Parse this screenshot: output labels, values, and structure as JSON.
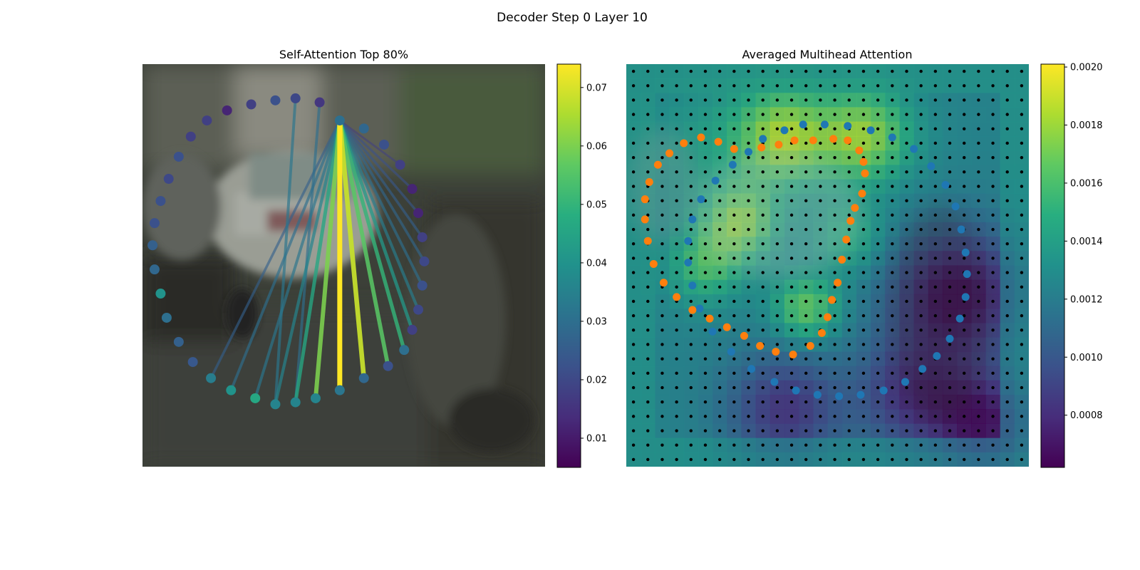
{
  "figure": {
    "suptitle": "Decoder Step 0 Layer 10"
  },
  "chart_data": [
    {
      "type": "scatter",
      "title": "Self-Attention Top 80%",
      "xlabel": "",
      "ylabel": "",
      "grid": false,
      "background": "blurred street photo with parked cars",
      "colormap": "viridis",
      "points": [
        {
          "x": 49,
          "y": 14,
          "v": 0.03
        },
        {
          "x": 55,
          "y": 16,
          "v": 0.028
        },
        {
          "x": 60,
          "y": 20,
          "v": 0.022
        },
        {
          "x": 64,
          "y": 25,
          "v": 0.018
        },
        {
          "x": 67,
          "y": 31,
          "v": 0.012
        },
        {
          "x": 68.5,
          "y": 37,
          "v": 0.012
        },
        {
          "x": 69.5,
          "y": 43,
          "v": 0.018
        },
        {
          "x": 70,
          "y": 49,
          "v": 0.02
        },
        {
          "x": 69.5,
          "y": 55,
          "v": 0.022
        },
        {
          "x": 68.5,
          "y": 61,
          "v": 0.02
        },
        {
          "x": 67,
          "y": 66,
          "v": 0.018
        },
        {
          "x": 65,
          "y": 71,
          "v": 0.03
        },
        {
          "x": 61,
          "y": 75,
          "v": 0.022
        },
        {
          "x": 55,
          "y": 78,
          "v": 0.028
        },
        {
          "x": 49,
          "y": 81,
          "v": 0.032
        },
        {
          "x": 43,
          "y": 83,
          "v": 0.036
        },
        {
          "x": 38,
          "y": 84,
          "v": 0.036
        },
        {
          "x": 33,
          "y": 84.5,
          "v": 0.036
        },
        {
          "x": 28,
          "y": 83,
          "v": 0.046
        },
        {
          "x": 22,
          "y": 81,
          "v": 0.04
        },
        {
          "x": 17,
          "y": 78,
          "v": 0.034
        },
        {
          "x": 12.5,
          "y": 74,
          "v": 0.024
        },
        {
          "x": 9,
          "y": 69,
          "v": 0.026
        },
        {
          "x": 6,
          "y": 63,
          "v": 0.03
        },
        {
          "x": 4.5,
          "y": 57,
          "v": 0.04
        },
        {
          "x": 3,
          "y": 51,
          "v": 0.028
        },
        {
          "x": 2.5,
          "y": 45,
          "v": 0.026
        },
        {
          "x": 3,
          "y": 39.5,
          "v": 0.022
        },
        {
          "x": 4.5,
          "y": 34,
          "v": 0.022
        },
        {
          "x": 6.5,
          "y": 28.5,
          "v": 0.02
        },
        {
          "x": 9,
          "y": 23,
          "v": 0.022
        },
        {
          "x": 12,
          "y": 18,
          "v": 0.018
        },
        {
          "x": 16,
          "y": 14,
          "v": 0.018
        },
        {
          "x": 21,
          "y": 11.5,
          "v": 0.012
        },
        {
          "x": 27,
          "y": 10,
          "v": 0.018
        },
        {
          "x": 33,
          "y": 9,
          "v": 0.022
        },
        {
          "x": 38,
          "y": 8.5,
          "v": 0.02
        },
        {
          "x": 44,
          "y": 9.5,
          "v": 0.016
        }
      ],
      "lines": [
        {
          "from": 0,
          "to": 14,
          "w": 0.074
        },
        {
          "from": 0,
          "to": 13,
          "w": 0.068
        },
        {
          "from": 0,
          "to": 15,
          "w": 0.06
        },
        {
          "from": 0,
          "to": 12,
          "w": 0.056
        },
        {
          "from": 0,
          "to": 11,
          "w": 0.05
        },
        {
          "from": 0,
          "to": 16,
          "w": 0.046
        },
        {
          "from": 0,
          "to": 10,
          "w": 0.042
        },
        {
          "from": 0,
          "to": 17,
          "w": 0.036
        },
        {
          "from": 0,
          "to": 9,
          "w": 0.034
        },
        {
          "from": 0,
          "to": 18,
          "w": 0.032
        },
        {
          "from": 0,
          "to": 8,
          "w": 0.03
        },
        {
          "from": 0,
          "to": 19,
          "w": 0.03
        },
        {
          "from": 0,
          "to": 7,
          "w": 0.028
        },
        {
          "from": 0,
          "to": 20,
          "w": 0.026
        },
        {
          "from": 0,
          "to": 6,
          "w": 0.026
        },
        {
          "from": 0,
          "to": 5,
          "w": 0.024
        },
        {
          "from": 0,
          "to": 4,
          "w": 0.022
        },
        {
          "from": 17,
          "to": 36,
          "w": 0.032
        },
        {
          "from": 16,
          "to": 37,
          "w": 0.03
        },
        {
          "from": 0,
          "to": 3,
          "w": 0.018
        }
      ],
      "colorbar": {
        "vmin": 0.005,
        "vmax": 0.074,
        "ticks": [
          0.01,
          0.02,
          0.03,
          0.04,
          0.05,
          0.06,
          0.07
        ],
        "tick_labels": [
          "0.01",
          "0.02",
          "0.03",
          "0.04",
          "0.05",
          "0.06",
          "0.07"
        ]
      }
    },
    {
      "type": "heatmap",
      "title": "Averaged Multihead Attention",
      "xlabel": "",
      "ylabel": "",
      "grid_cells": 28,
      "colormap": "viridis",
      "value_range": [
        0.00062,
        0.00201
      ],
      "blobs": [
        {
          "cx": 6,
          "cy": 6,
          "r": 5,
          "v": 0.0014
        },
        {
          "cx": 11,
          "cy": 5,
          "r": 3.2,
          "v": 0.0018
        },
        {
          "cx": 16.5,
          "cy": 5,
          "r": 3.2,
          "v": 0.0018
        },
        {
          "cx": 8,
          "cy": 11,
          "r": 2.5,
          "v": 0.0017
        },
        {
          "cx": 5.5,
          "cy": 14,
          "r": 2.5,
          "v": 0.0016
        },
        {
          "cx": 12.5,
          "cy": 17,
          "r": 2.2,
          "v": 0.0017
        },
        {
          "cx": 15.5,
          "cy": 12,
          "r": 2.5,
          "v": 0.0015
        },
        {
          "cx": 23,
          "cy": 16,
          "r": 4.5,
          "v": 0.0006
        },
        {
          "cx": 25,
          "cy": 25,
          "r": 3.5,
          "v": 0.0007
        },
        {
          "cx": 20,
          "cy": 23,
          "r": 4,
          "v": 0.0008
        },
        {
          "cx": 11,
          "cy": 24,
          "r": 4,
          "v": 0.0008
        }
      ],
      "blue_points": [
        [
          9.5,
          5.2
        ],
        [
          11,
          4.6
        ],
        [
          12.3,
          4.2
        ],
        [
          13.8,
          4.2
        ],
        [
          15.4,
          4.3
        ],
        [
          17,
          4.6
        ],
        [
          18.5,
          5.1
        ],
        [
          20,
          5.9
        ],
        [
          21.2,
          7.1
        ],
        [
          22.2,
          8.4
        ],
        [
          22.9,
          9.9
        ],
        [
          23.3,
          11.5
        ],
        [
          23.6,
          13.1
        ],
        [
          23.7,
          14.6
        ],
        [
          23.6,
          16.2
        ],
        [
          23.2,
          17.7
        ],
        [
          22.5,
          19.1
        ],
        [
          21.6,
          20.3
        ],
        [
          20.6,
          21.2
        ],
        [
          19.4,
          22.1
        ],
        [
          17.9,
          22.7
        ],
        [
          16.3,
          23
        ],
        [
          14.8,
          23.1
        ],
        [
          13.3,
          23
        ],
        [
          11.8,
          22.7
        ],
        [
          10.3,
          22.1
        ],
        [
          8.7,
          21.2
        ],
        [
          7.3,
          20
        ],
        [
          6,
          18.6
        ],
        [
          5.1,
          17
        ],
        [
          4.6,
          15.4
        ],
        [
          4.3,
          13.8
        ],
        [
          4.3,
          12.3
        ],
        [
          4.6,
          10.8
        ],
        [
          5.2,
          9.4
        ],
        [
          6.2,
          8.1
        ],
        [
          7.4,
          7
        ],
        [
          8.5,
          6.1
        ]
      ],
      "orange_points": [
        [
          9.4,
          5.8
        ],
        [
          10.6,
          5.6
        ],
        [
          11.7,
          5.3
        ],
        [
          13,
          5.3
        ],
        [
          14.4,
          5.2
        ],
        [
          15.4,
          5.3
        ],
        [
          16.2,
          6
        ],
        [
          16.5,
          6.8
        ],
        [
          16.6,
          7.6
        ],
        [
          16.4,
          9
        ],
        [
          15.9,
          10
        ],
        [
          15.6,
          10.9
        ],
        [
          15.3,
          12.2
        ],
        [
          15,
          13.6
        ],
        [
          14.7,
          15.2
        ],
        [
          14.3,
          16.4
        ],
        [
          14,
          17.6
        ],
        [
          13.6,
          18.7
        ],
        [
          12.8,
          19.6
        ],
        [
          11.6,
          20.2
        ],
        [
          10.4,
          20
        ],
        [
          9.3,
          19.6
        ],
        [
          8.2,
          18.9
        ],
        [
          7,
          18.3
        ],
        [
          5.8,
          17.7
        ],
        [
          4.6,
          17.1
        ],
        [
          3.5,
          16.2
        ],
        [
          2.6,
          15.2
        ],
        [
          1.9,
          13.9
        ],
        [
          1.5,
          12.3
        ],
        [
          1.3,
          10.8
        ],
        [
          1.3,
          9.4
        ],
        [
          1.6,
          8.2
        ],
        [
          2.2,
          7
        ],
        [
          3,
          6.2
        ],
        [
          4,
          5.5
        ],
        [
          5.2,
          5.1
        ],
        [
          6.4,
          5.4
        ],
        [
          7.5,
          5.9
        ]
      ],
      "colorbar": {
        "vmin": 0.00062,
        "vmax": 0.00201,
        "ticks": [
          0.0008,
          0.001,
          0.0012,
          0.0014,
          0.0016,
          0.0018,
          0.002
        ],
        "tick_labels": [
          "0.0008",
          "0.0010",
          "0.0012",
          "0.0014",
          "0.0016",
          "0.0018",
          "0.0020"
        ]
      }
    }
  ]
}
